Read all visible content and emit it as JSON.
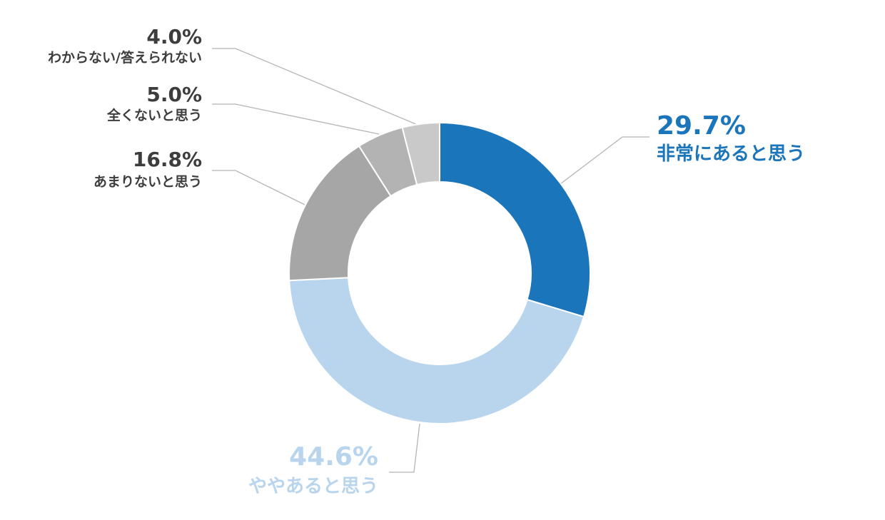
{
  "chart_data": {
    "type": "pie",
    "variant": "donut",
    "title": "",
    "unit": "%",
    "start": "top",
    "direction": "clockwise",
    "slices": [
      {
        "label": "非常にあると思う",
        "value": 29.7,
        "display": "29.7%",
        "color": "#1b75bb",
        "label_color": "#1b75bb"
      },
      {
        "label": "ややあると思う",
        "value": 44.6,
        "display": "44.6%",
        "color": "#b9d5ee",
        "label_color": "#b9d5ee"
      },
      {
        "label": "あまりないと思う",
        "value": 16.8,
        "display": "16.8%",
        "color": "#a6a6a6",
        "label_color": "#3d3d3d"
      },
      {
        "label": "全くないと思う",
        "value": 5.0,
        "display": "5.0%",
        "color": "#b3b3b3",
        "label_color": "#3d3d3d"
      },
      {
        "label": "わからない/答えられない",
        "value": 4.0,
        "display": "4.0%",
        "color": "#c9c9c9",
        "label_color": "#3d3d3d"
      }
    ],
    "leader_line_color": "#b5b5b5",
    "legend": "none"
  }
}
